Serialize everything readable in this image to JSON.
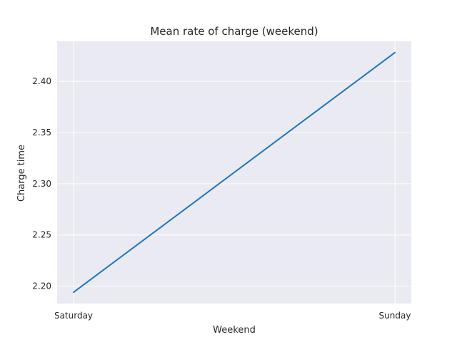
{
  "chart_data": {
    "type": "line",
    "title": "Mean rate of charge (weekend)",
    "xlabel": "Weekend",
    "ylabel": "Charge time",
    "categories": [
      "Saturday",
      "Sunday"
    ],
    "series": [
      {
        "values": [
          2.194,
          2.428
        ],
        "color": "#1f77b4"
      }
    ],
    "ylim": [
      2.183,
      2.439
    ],
    "yticks": [
      2.2,
      2.25,
      2.3,
      2.35,
      2.4
    ],
    "ytick_labels": [
      "2.20",
      "2.25",
      "2.30",
      "2.35",
      "2.40"
    ],
    "grid": true,
    "style": {
      "plot_background": "#eaeaf2",
      "grid_color": "#ffffff"
    }
  }
}
